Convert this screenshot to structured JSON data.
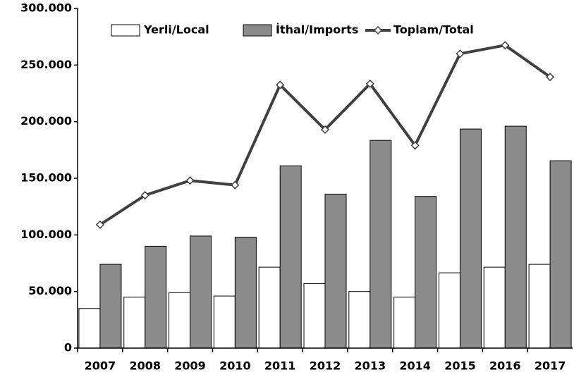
{
  "chart_data": {
    "type": "bar",
    "categories": [
      "2007",
      "2008",
      "2009",
      "2010",
      "2011",
      "2012",
      "2013",
      "2014",
      "2015",
      "2016",
      "2017"
    ],
    "series": [
      {
        "name": "Yerli/Local",
        "color": "#ffffff",
        "values": [
          35000,
          45000,
          49000,
          46000,
          71500,
          57000,
          50000,
          45000,
          66500,
          71500,
          74000
        ]
      },
      {
        "name": "İthal/Imports",
        "color": "#8c8c8c",
        "values": [
          74000,
          90000,
          99000,
          98000,
          161000,
          136000,
          183500,
          134000,
          193500,
          196000,
          165500
        ]
      },
      {
        "name": "Toplam/Total",
        "type": "line",
        "color": "#404040",
        "values": [
          109000,
          135000,
          148000,
          144000,
          232500,
          193000,
          233500,
          179000,
          260000,
          267500,
          239500
        ]
      }
    ],
    "ylim": [
      0,
      300000
    ],
    "yticks": [
      0,
      {
        "value": 50000,
        "label": "50.000"
      },
      {
        "value": 100000,
        "label": "100.000"
      },
      {
        "value": 150000,
        "label": "150.000"
      },
      {
        "value": 200000,
        "label": "200.000"
      },
      {
        "value": 250000,
        "label": "250.000"
      },
      {
        "value": 300000,
        "label": "300.000"
      }
    ]
  }
}
